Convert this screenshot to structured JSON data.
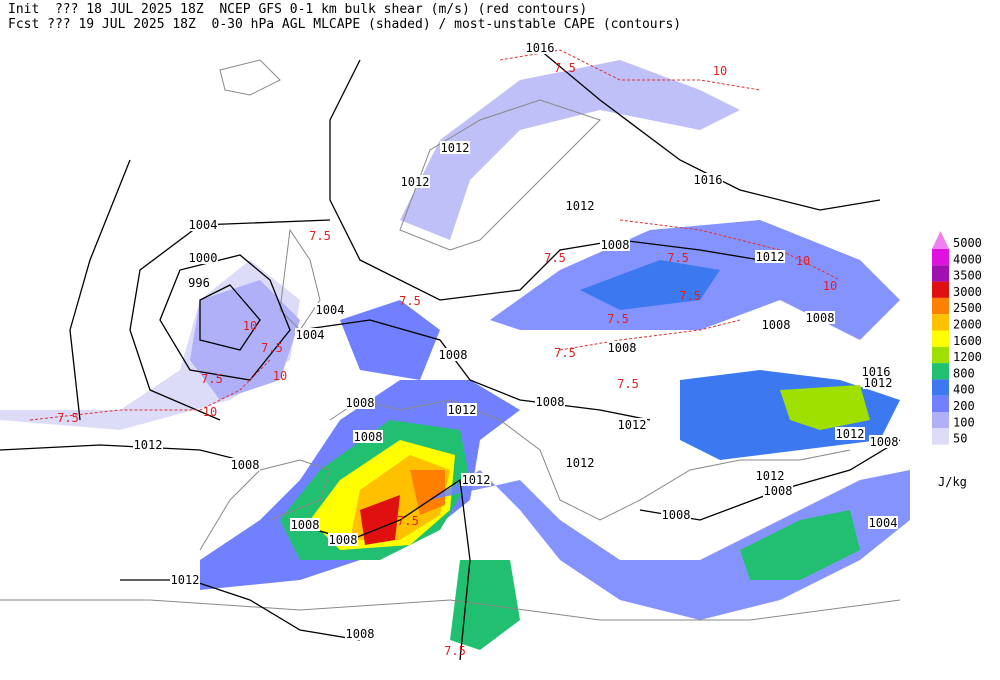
{
  "header": {
    "line1": "Init  ??? 18 JUL 2025 18Z  NCEP GFS 0-1 km bulk shear (m/s) (red contours)",
    "line2": "Fcst ??? 19 JUL 2025 18Z  0-30 hPa AGL MLCAPE (shaded) / most-unstable CAPE (contours)"
  },
  "legend": {
    "levels": [
      5000,
      4000,
      3500,
      3000,
      2500,
      2000,
      1600,
      1200,
      800,
      400,
      200,
      100,
      50
    ],
    "colors": [
      "#f080f0",
      "#e010e0",
      "#a010b0",
      "#e01010",
      "#ff8000",
      "#ffc000",
      "#ffff00",
      "#a0e000",
      "#20c070",
      "#3c78f0",
      "#7080ff",
      "#b0b0f8",
      "#dcdcf8"
    ],
    "unit": "J/kg"
  },
  "isobar_labels": [
    1016,
    1012,
    1012,
    1016,
    1012,
    1004,
    1000,
    996,
    1008,
    1012,
    1004,
    1004,
    1008,
    1008,
    1008,
    1008,
    1016,
    1012,
    1008,
    1012,
    1008,
    1012,
    1008,
    1012,
    1008,
    1008,
    1012,
    1012,
    1012,
    1008,
    1008,
    1008,
    1008,
    1004,
    1012,
    1008,
    1012
  ],
  "shear_labels": [
    7.5,
    7.5,
    7.5,
    7.5,
    7.5,
    7.5,
    7.5,
    7.5,
    7.5,
    10,
    10,
    10,
    10,
    7.5,
    7.5,
    7.5,
    7.5,
    10,
    10,
    7.5
  ]
}
